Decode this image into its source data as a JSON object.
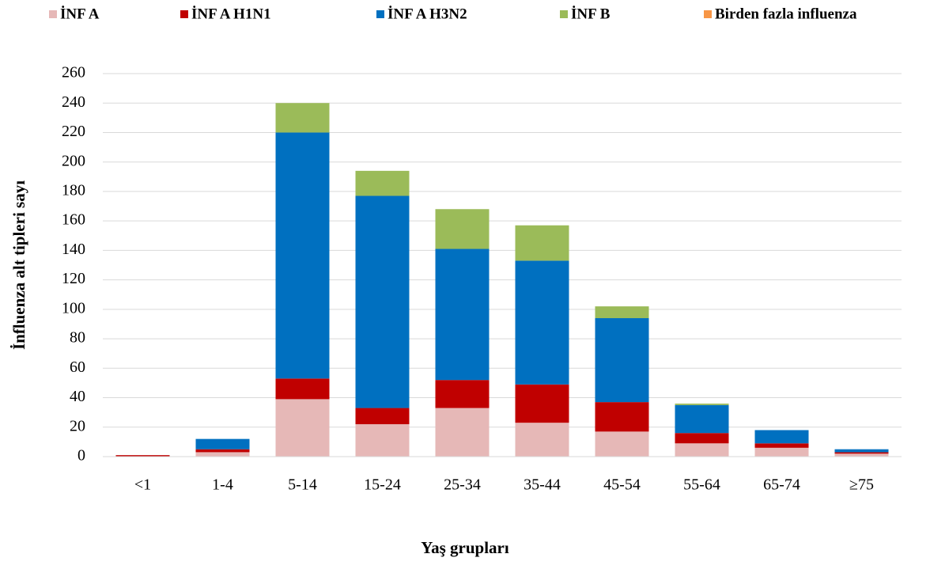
{
  "chart_data": {
    "type": "stacked_bar",
    "x_label": "Yaş grupları",
    "y_label": "İnfluenza alt tipleri sayı",
    "categories": [
      "<1",
      "1-4",
      "5-14",
      "15-24",
      "25-34",
      "35-44",
      "45-54",
      "55-64",
      "65-74",
      "≥75"
    ],
    "series": [
      {
        "name": "İNF A",
        "color": "#e6b8b7",
        "values": [
          0,
          3,
          39,
          22,
          33,
          23,
          17,
          9,
          6,
          2
        ]
      },
      {
        "name": "İNF A H1N1",
        "color": "#c00000",
        "values": [
          1,
          2,
          14,
          11,
          19,
          26,
          20,
          7,
          3,
          1
        ]
      },
      {
        "name": "İNF A H3N2",
        "color": "#0070c0",
        "values": [
          0,
          7,
          167,
          144,
          89,
          84,
          57,
          19,
          9,
          2
        ]
      },
      {
        "name": "İNF B",
        "color": "#9bbb59",
        "values": [
          0,
          0,
          20,
          17,
          27,
          24,
          8,
          1,
          0,
          0
        ]
      },
      {
        "name": "Birden fazla influenza",
        "color": "#f79646",
        "values": [
          0,
          0,
          0,
          0,
          0,
          0,
          0,
          0,
          0,
          0
        ]
      }
    ],
    "ylim": [
      0,
      260
    ],
    "yticks": [
      0,
      20,
      40,
      60,
      80,
      100,
      120,
      140,
      160,
      180,
      200,
      220,
      240,
      260
    ],
    "grid": true,
    "legend": "top"
  }
}
